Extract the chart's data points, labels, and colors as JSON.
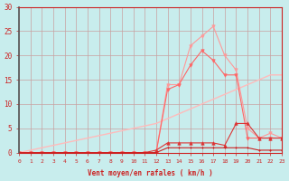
{
  "x": [
    0,
    1,
    2,
    3,
    4,
    5,
    6,
    7,
    8,
    9,
    10,
    11,
    12,
    13,
    14,
    15,
    16,
    17,
    18,
    19,
    20,
    21,
    22,
    23
  ],
  "line_rafales": [
    0,
    0,
    0,
    0,
    0,
    0,
    0,
    0,
    0,
    0,
    0,
    0,
    0,
    14,
    14,
    22,
    24,
    26,
    20,
    17,
    5,
    3,
    4,
    3
  ],
  "line_moyen": [
    0,
    0,
    0,
    0,
    0,
    0,
    0,
    0,
    0,
    0,
    0,
    0,
    0,
    13,
    14,
    18,
    21,
    19,
    16,
    16,
    3,
    3,
    3,
    3
  ],
  "line_trend": [
    0,
    0.5,
    1,
    1.5,
    2,
    2.5,
    3,
    3.5,
    4,
    4.5,
    5,
    5.5,
    6,
    7,
    8,
    9,
    10,
    11,
    12,
    13,
    14,
    15,
    16,
    16
  ],
  "line_low1": [
    0,
    0,
    0,
    0,
    0,
    0,
    0,
    0,
    0,
    0,
    0,
    0,
    0.5,
    2,
    2,
    2,
    2,
    2,
    1.5,
    6,
    6,
    3,
    3,
    3
  ],
  "line_low2": [
    0,
    0,
    0,
    0,
    0,
    0,
    0,
    0,
    0,
    0,
    0,
    0,
    0,
    1,
    1,
    1,
    1,
    1,
    1,
    1,
    1,
    0.5,
    0.5,
    0.5
  ],
  "xlim": [
    0,
    23
  ],
  "ylim": [
    0,
    30
  ],
  "yticks": [
    0,
    5,
    10,
    15,
    20,
    25,
    30
  ],
  "xticks": [
    0,
    1,
    2,
    3,
    4,
    5,
    6,
    7,
    8,
    9,
    10,
    11,
    12,
    13,
    14,
    15,
    16,
    17,
    18,
    19,
    20,
    21,
    22,
    23
  ],
  "xlabel": "Vent moyen/en rafales ( km/h )",
  "bg_color": "#c8eded",
  "grid_color": "#c8a0a0",
  "axis_color": "#cc2222",
  "text_color": "#cc2222",
  "line_color_rafales": "#ff9999",
  "line_color_moyen": "#ff6666",
  "line_color_trend": "#ffbbbb",
  "line_color_low1": "#dd3333",
  "line_color_low2": "#cc2222"
}
